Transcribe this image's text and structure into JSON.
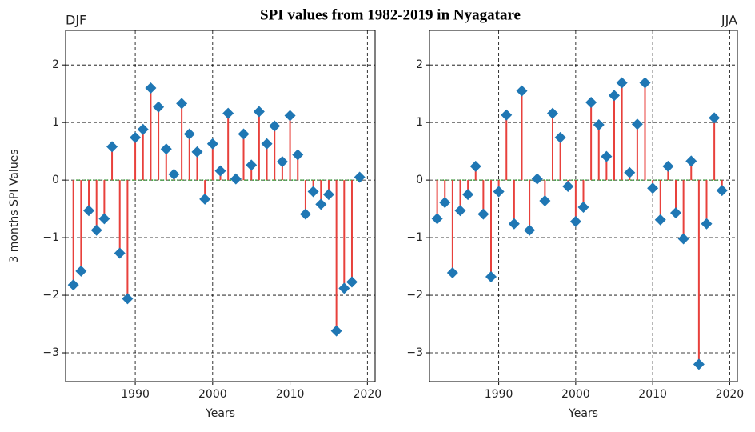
{
  "title": "SPI values from 1982-2019 in Nyagatare",
  "chart_data": [
    {
      "type": "stem",
      "title": "DJF",
      "title_loc": "left",
      "xlabel": "Years",
      "ylabel": "3 months SPI Values",
      "x": [
        1982,
        1983,
        1984,
        1985,
        1986,
        1987,
        1988,
        1989,
        1990,
        1991,
        1992,
        1993,
        1994,
        1995,
        1996,
        1997,
        1998,
        1999,
        2000,
        2001,
        2002,
        2003,
        2004,
        2005,
        2006,
        2007,
        2008,
        2009,
        2010,
        2011,
        2012,
        2013,
        2014,
        2015,
        2016,
        2017,
        2018,
        2019
      ],
      "values": [
        -1.82,
        -1.58,
        -0.53,
        -0.87,
        -0.67,
        0.58,
        -1.27,
        -2.06,
        0.74,
        0.88,
        1.6,
        1.27,
        0.54,
        0.1,
        1.33,
        0.8,
        0.49,
        -0.33,
        0.63,
        0.16,
        1.16,
        0.02,
        0.8,
        0.26,
        1.19,
        0.63,
        0.94,
        0.32,
        1.12,
        0.44,
        -0.59,
        -0.2,
        -0.42,
        -0.25,
        -2.62,
        -1.88,
        -1.77,
        0.05
      ],
      "marker_color": "#1f77b4",
      "stem_color": "#e8413c",
      "baseline_color": "#2ca02c",
      "xlim": [
        1981,
        2021
      ],
      "ylim": [
        -3.5,
        2.6
      ],
      "xticks": [
        1990,
        2000,
        2010,
        2020
      ],
      "yticks": [
        {
          "value": -3,
          "label": "−3"
        },
        {
          "value": -2,
          "label": "−2"
        },
        {
          "value": -1,
          "label": "−1"
        },
        0,
        1,
        2
      ],
      "grid": true
    },
    {
      "type": "stem",
      "title": "JJA",
      "title_loc": "right",
      "xlabel": "Years",
      "x": [
        1982,
        1983,
        1984,
        1985,
        1986,
        1987,
        1988,
        1989,
        1990,
        1991,
        1992,
        1993,
        1994,
        1995,
        1996,
        1997,
        1998,
        1999,
        2000,
        2001,
        2002,
        2003,
        2004,
        2005,
        2006,
        2007,
        2008,
        2009,
        2010,
        2011,
        2012,
        2013,
        2014,
        2015,
        2016,
        2017,
        2018,
        2019
      ],
      "values": [
        -0.67,
        -0.39,
        -1.61,
        -0.53,
        -0.25,
        0.24,
        -0.59,
        -1.68,
        -0.2,
        1.13,
        -0.76,
        1.55,
        -0.87,
        0.02,
        -0.36,
        1.16,
        0.74,
        -0.11,
        -0.72,
        -0.47,
        1.35,
        0.96,
        0.41,
        1.47,
        1.69,
        0.13,
        0.97,
        1.69,
        -0.14,
        -0.69,
        0.24,
        -0.57,
        -1.02,
        0.33,
        -3.2,
        -0.76,
        1.08,
        -0.18
      ],
      "marker_color": "#1f77b4",
      "stem_color": "#e8413c",
      "baseline_color": "#2ca02c",
      "xlim": [
        1981,
        2021
      ],
      "ylim": [
        -3.5,
        2.6
      ],
      "xticks": [
        1990,
        2000,
        2010,
        2020
      ],
      "yticks": [
        {
          "value": -3,
          "label": "−3"
        },
        {
          "value": -2,
          "label": "−2"
        },
        {
          "value": -1,
          "label": "−1"
        },
        0,
        1,
        2
      ],
      "grid": true
    }
  ]
}
